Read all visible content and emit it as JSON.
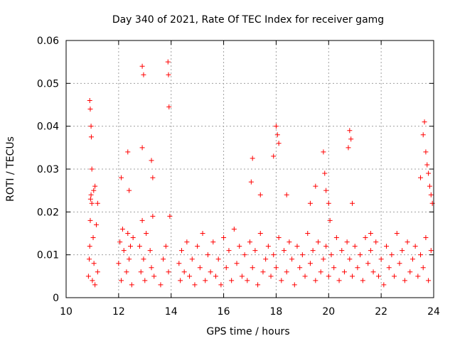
{
  "chart_data": {
    "type": "scatter",
    "title": "Day 340 of 2021, Rate Of TEC Index for receiver gamg",
    "xlabel": "GPS time / hours",
    "ylabel": "ROTI / TECUs",
    "xlim": [
      10,
      24
    ],
    "ylim": [
      0,
      0.06
    ],
    "x_ticks": [
      10,
      12,
      14,
      16,
      18,
      20,
      22,
      24
    ],
    "x_tick_labels": [
      "10",
      "12",
      "14",
      "16",
      "18",
      "20",
      "22",
      "24"
    ],
    "y_ticks": [
      0,
      0.01,
      0.02,
      0.03,
      0.04,
      0.05,
      0.06
    ],
    "y_tick_labels": [
      "0",
      "0.01",
      "0.02",
      "0.03",
      "0.04",
      "0.05",
      "0.06"
    ],
    "grid": true,
    "marker": "+",
    "marker_color": "#ff0000",
    "series": [
      {
        "name": "ROTI",
        "x": [
          10.85,
          10.88,
          10.9,
          10.92,
          10.95,
          10.98,
          11.0,
          11.03,
          11.06,
          11.1,
          11.15,
          11.2,
          10.9,
          10.92,
          10.95,
          10.96,
          10.98,
          10.93,
          11.05,
          11.1,
          11.2,
          12.0,
          12.05,
          12.1,
          12.15,
          12.2,
          12.3,
          12.35,
          12.4,
          12.45,
          12.5,
          12.55,
          12.1,
          12.35,
          12.4,
          12.8,
          12.85,
          12.9,
          12.95,
          13.0,
          13.05,
          13.2,
          13.25,
          13.3,
          13.35,
          12.9,
          12.95,
          12.9,
          13.25,
          13.3,
          13.6,
          13.7,
          13.8,
          13.9,
          13.95,
          13.88,
          13.9,
          13.92,
          14.3,
          14.35,
          14.4,
          14.5,
          14.6,
          14.7,
          14.8,
          14.9,
          15.0,
          15.1,
          15.2,
          15.3,
          15.4,
          15.5,
          15.6,
          15.7,
          15.8,
          15.9,
          16.0,
          16.1,
          16.2,
          16.3,
          16.4,
          16.5,
          16.6,
          16.7,
          16.8,
          16.9,
          17.0,
          17.1,
          17.2,
          17.3,
          17.4,
          17.5,
          17.6,
          17.7,
          17.8,
          17.9,
          18.0,
          18.1,
          18.2,
          18.3,
          18.4,
          18.5,
          18.6,
          18.7,
          18.8,
          18.9,
          19.0,
          19.1,
          19.2,
          19.3,
          19.4,
          19.5,
          19.6,
          19.7,
          19.8,
          19.9,
          20.0,
          20.1,
          20.2,
          20.3,
          20.4,
          20.5,
          20.6,
          20.7,
          20.8,
          20.9,
          21.0,
          21.1,
          21.2,
          21.3,
          21.4,
          21.5,
          21.6,
          21.7,
          21.8,
          21.9,
          22.0,
          22.1,
          22.2,
          22.3,
          22.4,
          22.5,
          22.6,
          22.7,
          22.8,
          22.9,
          23.0,
          23.1,
          23.2,
          23.3,
          23.4,
          23.5,
          23.6,
          23.7,
          23.8,
          23.9,
          17.05,
          17.1,
          17.4,
          17.9,
          18.0,
          18.05,
          18.1,
          18.4,
          19.3,
          19.5,
          19.8,
          19.85,
          19.9,
          20.0,
          20.05,
          20.75,
          20.8,
          20.85,
          20.9,
          21.6,
          23.5,
          23.6,
          23.65,
          23.7,
          23.75,
          23.8,
          23.85,
          23.9,
          23.95
        ],
        "y": [
          0.005,
          0.009,
          0.012,
          0.018,
          0.024,
          0.022,
          0.004,
          0.014,
          0.008,
          0.003,
          0.017,
          0.006,
          0.046,
          0.044,
          0.04,
          0.0375,
          0.03,
          0.023,
          0.025,
          0.026,
          0.022,
          0.008,
          0.013,
          0.004,
          0.016,
          0.011,
          0.006,
          0.015,
          0.009,
          0.012,
          0.003,
          0.014,
          0.028,
          0.034,
          0.025,
          0.012,
          0.006,
          0.018,
          0.009,
          0.004,
          0.015,
          0.011,
          0.007,
          0.019,
          0.005,
          0.054,
          0.052,
          0.035,
          0.032,
          0.028,
          0.003,
          0.009,
          0.012,
          0.006,
          0.019,
          0.055,
          0.052,
          0.0445,
          0.008,
          0.004,
          0.011,
          0.006,
          0.013,
          0.005,
          0.009,
          0.003,
          0.012,
          0.007,
          0.015,
          0.004,
          0.01,
          0.006,
          0.013,
          0.005,
          0.009,
          0.003,
          0.014,
          0.007,
          0.011,
          0.004,
          0.016,
          0.008,
          0.012,
          0.005,
          0.01,
          0.004,
          0.013,
          0.007,
          0.011,
          0.003,
          0.015,
          0.006,
          0.009,
          0.012,
          0.005,
          0.01,
          0.007,
          0.014,
          0.004,
          0.011,
          0.006,
          0.013,
          0.009,
          0.003,
          0.012,
          0.007,
          0.01,
          0.005,
          0.015,
          0.008,
          0.011,
          0.004,
          0.013,
          0.006,
          0.009,
          0.012,
          0.005,
          0.01,
          0.007,
          0.014,
          0.004,
          0.011,
          0.006,
          0.013,
          0.009,
          0.005,
          0.012,
          0.007,
          0.01,
          0.004,
          0.014,
          0.008,
          0.011,
          0.006,
          0.013,
          0.005,
          0.009,
          0.003,
          0.012,
          0.007,
          0.01,
          0.005,
          0.015,
          0.008,
          0.011,
          0.004,
          0.013,
          0.006,
          0.009,
          0.012,
          0.005,
          0.01,
          0.007,
          0.014,
          0.004,
          0.011,
          0.027,
          0.0325,
          0.024,
          0.033,
          0.04,
          0.038,
          0.036,
          0.024,
          0.022,
          0.026,
          0.034,
          0.029,
          0.025,
          0.022,
          0.018,
          0.035,
          0.039,
          0.037,
          0.022,
          0.015,
          0.028,
          0.038,
          0.041,
          0.034,
          0.031,
          0.029,
          0.026,
          0.024,
          0.022
        ]
      }
    ]
  }
}
